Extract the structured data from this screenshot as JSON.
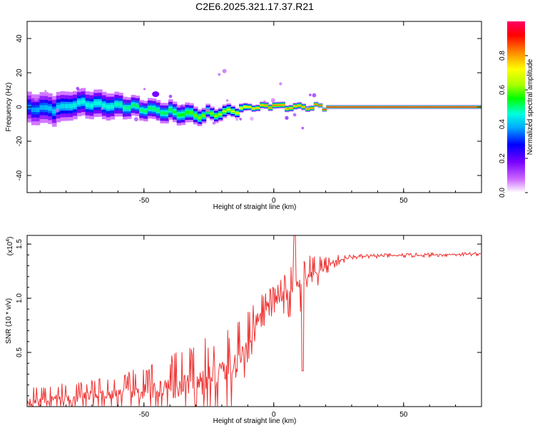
{
  "chart_data": [
    {
      "type": "heatmap",
      "title": "C2E6.2025.321.17.37.R21",
      "xlabel": "Height of straight line (km)",
      "ylabel": "Frequency (Hz)",
      "xlim": [
        -95,
        80
      ],
      "ylim": [
        -50,
        50
      ],
      "xticks": [
        -50,
        0,
        50
      ],
      "yticks": [
        -40,
        -20,
        0,
        20,
        40
      ],
      "colorbar": {
        "label": "Normalized spectral amplitude",
        "range": [
          0,
          1
        ],
        "ticks": [
          "0.0",
          "0.2",
          "0.4",
          "0.6",
          "0.8"
        ],
        "colormap": [
          "#ffffff",
          "#cc66ff",
          "#7700ff",
          "#0000ff",
          "#00aaff",
          "#00ffdd",
          "#00ff00",
          "#aaff00",
          "#ffff00",
          "#ff8800",
          "#ff0000",
          "#ff0066"
        ]
      },
      "ridge": {
        "x": [
          -95,
          -85,
          -75,
          -65,
          -55,
          -45,
          -35,
          -30,
          -25,
          -20,
          -15,
          -10,
          -5,
          0,
          5,
          10,
          15,
          20,
          40,
          60,
          80
        ],
        "freq": [
          -1,
          -1,
          2,
          1,
          0,
          -2,
          -4,
          -5,
          -4,
          -3,
          -2,
          0,
          0,
          1,
          0,
          -0.5,
          0,
          0,
          0,
          0,
          0
        ],
        "spread": [
          9,
          9,
          8,
          8,
          6,
          6,
          6,
          5,
          4,
          4,
          3,
          2,
          2,
          2,
          2,
          2,
          1.5,
          1.2,
          1.2,
          1.2,
          1.2
        ],
        "amplitude": [
          0.35,
          0.4,
          0.45,
          0.45,
          0.5,
          0.5,
          0.55,
          0.6,
          0.6,
          0.65,
          0.7,
          0.75,
          0.8,
          0.85,
          0.8,
          0.8,
          0.85,
          0.95,
          0.95,
          0.95,
          0.95
        ]
      }
    },
    {
      "type": "line",
      "xlabel": "Height of straight line (km)",
      "ylabel": "SNR (10 * v/v)",
      "multiplier": "(x10",
      "multiplier_exp": "4",
      "multiplier_close": ")",
      "xlim": [
        -95,
        80
      ],
      "ylim": [
        0,
        1.58
      ],
      "xticks": [
        -50,
        0,
        50
      ],
      "yticks": [
        0.5,
        1.0,
        1.5
      ],
      "ytick_labels": [
        "0.5",
        "1.0",
        "1.5"
      ],
      "series": [
        {
          "name": "SNR",
          "color": "#ee3333",
          "trend": {
            "x": [
              -95,
              -80,
              -60,
              -40,
              -25,
              -15,
              -10,
              -5,
              0,
              5,
              10,
              15,
              20,
              25,
              30,
              40,
              60,
              80
            ],
            "y": [
              0.05,
              0.08,
              0.12,
              0.16,
              0.24,
              0.36,
              0.62,
              0.88,
              0.98,
              1.02,
              1.1,
              1.2,
              1.3,
              1.35,
              1.38,
              1.39,
              1.4,
              1.41
            ]
          },
          "noise": {
            "x": [
              -95,
              -60,
              -40,
              -25,
              -15,
              -10,
              -5,
              0,
              10,
              20,
              30,
              80
            ],
            "amp": [
              0.09,
              0.12,
              0.22,
              0.3,
              0.28,
              0.2,
              0.12,
              0.1,
              0.22,
              0.06,
              0.015,
              0.012
            ]
          },
          "features": [
            {
              "x": 8,
              "y": 1.58
            },
            {
              "x": 11,
              "y": 0.33
            }
          ]
        }
      ]
    }
  ]
}
